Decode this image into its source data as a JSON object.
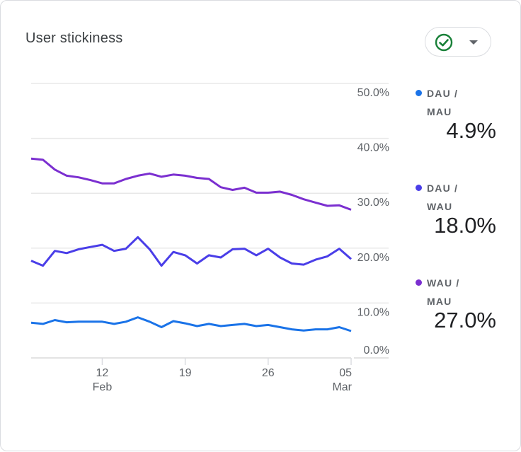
{
  "card": {
    "title": "User stickiness",
    "status_icon": "check-circle-icon",
    "dropdown_icon": "caret-down-icon"
  },
  "legend": [
    {
      "label_line1": "DAU /",
      "label_line2": "MAU",
      "value": "4.9%",
      "color": "#1a73e8"
    },
    {
      "label_line1": "DAU /",
      "label_line2": "WAU",
      "value": "18.0%",
      "color": "#4a3ee8"
    },
    {
      "label_line1": "WAU /",
      "label_line2": "MAU",
      "value": "27.0%",
      "color": "#7b2fd0"
    }
  ],
  "chart_data": {
    "type": "line",
    "title": "User stickiness",
    "x_start": "Feb 6",
    "x_end": "Mar 5",
    "x_ticks": [
      {
        "day": 12,
        "label": "12",
        "sublabel": "Feb"
      },
      {
        "day": 19,
        "label": "19",
        "sublabel": ""
      },
      {
        "day": 26,
        "label": "26",
        "sublabel": ""
      },
      {
        "day": 33,
        "label": "05",
        "sublabel": "Mar"
      }
    ],
    "ylim": [
      0,
      50
    ],
    "y_ticks": [
      "0.0%",
      "10.0%",
      "20.0%",
      "30.0%",
      "40.0%",
      "50.0%"
    ],
    "y_axis_side": "right",
    "grid": true,
    "legend_position": "right",
    "series": [
      {
        "name": "DAU / MAU",
        "color": "#1a73e8",
        "values": [
          6.4,
          6.2,
          6.9,
          6.5,
          6.6,
          6.6,
          6.6,
          6.2,
          6.6,
          7.4,
          6.6,
          5.6,
          6.7,
          6.3,
          5.8,
          6.2,
          5.8,
          6.0,
          6.2,
          5.8,
          6.0,
          5.6,
          5.2,
          5.0,
          5.2,
          5.2,
          5.6,
          4.9
        ]
      },
      {
        "name": "DAU / WAU",
        "color": "#4a3ee8",
        "values": [
          17.7,
          16.8,
          19.5,
          19.1,
          19.8,
          20.2,
          20.6,
          19.5,
          19.9,
          22.0,
          19.8,
          16.8,
          19.3,
          18.7,
          17.2,
          18.7,
          18.3,
          19.8,
          19.9,
          18.7,
          19.9,
          18.3,
          17.2,
          17.0,
          17.9,
          18.5,
          19.9,
          18.0
        ]
      },
      {
        "name": "WAU / MAU",
        "color": "#7b2fd0",
        "values": [
          36.3,
          36.1,
          34.3,
          33.2,
          32.9,
          32.4,
          31.8,
          31.8,
          32.6,
          33.2,
          33.6,
          33.0,
          33.4,
          33.2,
          32.8,
          32.6,
          31.1,
          30.6,
          31.0,
          30.1,
          30.1,
          30.3,
          29.7,
          28.9,
          28.3,
          27.7,
          27.8,
          27.0
        ]
      }
    ]
  }
}
